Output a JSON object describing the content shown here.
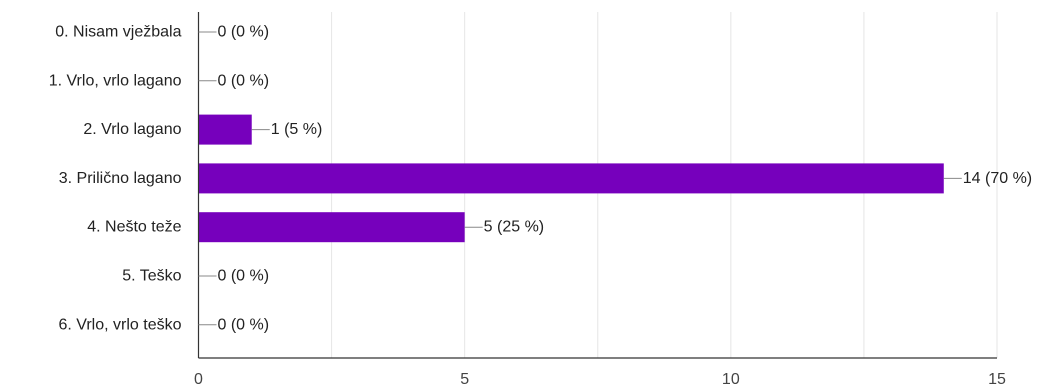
{
  "chart_data": {
    "type": "bar",
    "orientation": "horizontal",
    "categories": [
      "0. Nisam vježbala",
      "1. Vrlo, vrlo lagano",
      "2. Vrlo lagano",
      "3. Prilično lagano",
      "4. Nešto teže",
      "5. Teško",
      "6. Vrlo, vrlo teško"
    ],
    "values": [
      0,
      0,
      1,
      14,
      5,
      0,
      0
    ],
    "data_labels": [
      "0 (0 %)",
      "0 (0 %)",
      "1 (5 %)",
      "14 (70 %)",
      "5 (25 %)",
      "0 (0 %)",
      "0 (0 %)"
    ],
    "xlim": [
      0,
      15
    ],
    "x_ticks": [
      0,
      5,
      10,
      15
    ],
    "x_tick_labels": [
      "0",
      "5",
      "10",
      "15"
    ],
    "grid": true,
    "bar_color": "#7600bc",
    "grid_color": "#e6e6e6",
    "axis_color": "#333333"
  }
}
